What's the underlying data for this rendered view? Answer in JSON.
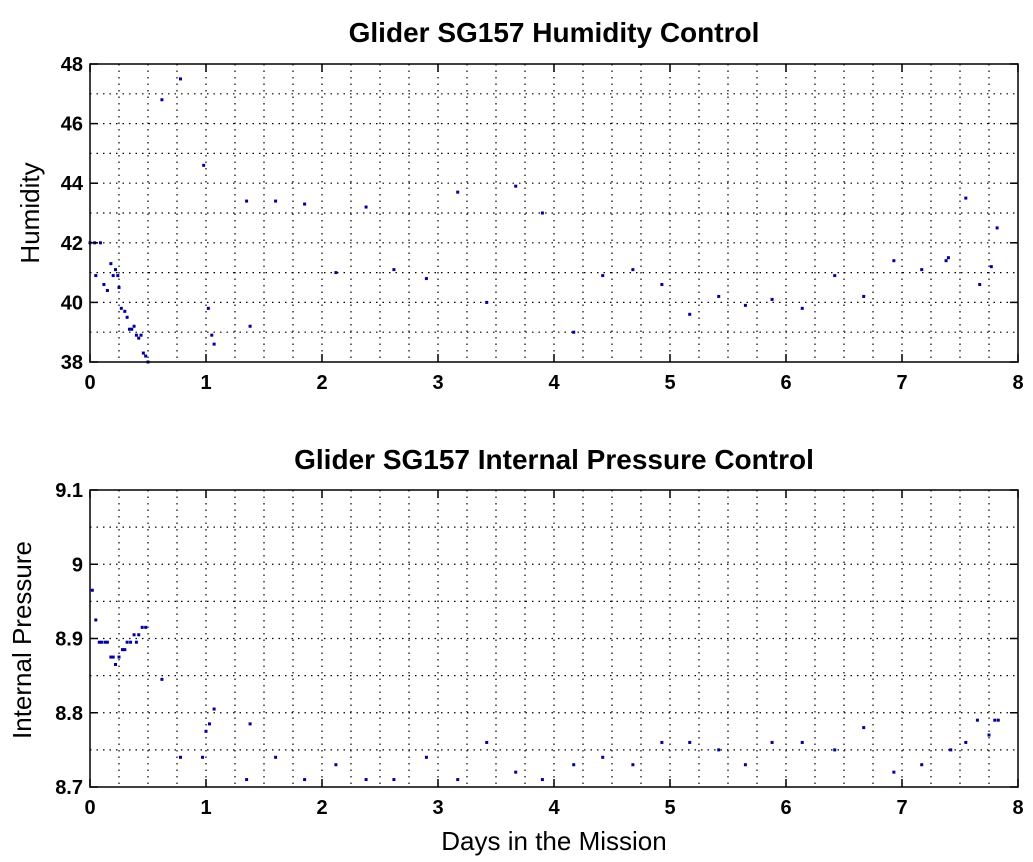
{
  "chart_data": [
    {
      "type": "scatter",
      "title": "Glider SG157 Humidity Control",
      "xlabel": "",
      "ylabel": "Humidity",
      "xlim": [
        0,
        8
      ],
      "ylim": [
        38,
        48
      ],
      "xticks": [
        0,
        1,
        2,
        3,
        4,
        5,
        6,
        7,
        8
      ],
      "yticks": [
        38,
        40,
        42,
        44,
        46,
        48
      ],
      "grid": true,
      "marker_color": "#00009b",
      "series": [
        {
          "x": [
            0.0,
            0.04,
            0.05,
            0.09,
            0.12,
            0.15,
            0.18,
            0.2,
            0.22,
            0.24,
            0.25,
            0.27,
            0.3,
            0.32,
            0.34,
            0.36,
            0.38,
            0.4,
            0.42,
            0.44,
            0.46,
            0.48,
            0.5,
            0.62,
            0.78,
            0.98,
            1.02,
            1.05,
            1.07,
            1.35,
            1.38,
            1.6,
            1.85,
            2.12,
            2.38,
            2.62,
            2.9,
            3.17,
            3.42,
            3.67,
            3.9,
            4.17,
            4.42,
            4.68,
            4.93,
            5.17,
            5.42,
            5.65,
            5.88,
            6.14,
            6.42,
            6.67,
            6.93,
            7.17,
            7.38,
            7.4,
            7.55,
            7.67,
            7.77,
            7.82
          ],
          "y": [
            42.0,
            42.0,
            40.9,
            42.0,
            40.6,
            40.4,
            41.3,
            40.9,
            41.1,
            40.9,
            40.5,
            39.8,
            39.7,
            39.5,
            39.1,
            39.1,
            39.2,
            38.9,
            38.8,
            38.9,
            38.3,
            38.2,
            38.0,
            46.8,
            47.5,
            44.6,
            39.8,
            38.9,
            38.6,
            43.4,
            39.2,
            43.4,
            43.3,
            41.0,
            43.2,
            41.1,
            40.8,
            43.7,
            40.0,
            43.9,
            43.0,
            39.0,
            40.9,
            41.1,
            40.6,
            39.6,
            40.2,
            39.9,
            40.1,
            39.8,
            40.9,
            40.2,
            41.4,
            41.1,
            41.4,
            41.5,
            43.5,
            40.6,
            41.2,
            42.5
          ]
        }
      ]
    },
    {
      "type": "scatter",
      "title": "Glider SG157 Internal Pressure Control",
      "xlabel": "Days in the Mission",
      "ylabel": "Internal Pressure",
      "xlim": [
        0,
        8
      ],
      "ylim": [
        8.7,
        9.1
      ],
      "xticks": [
        0,
        1,
        2,
        3,
        4,
        5,
        6,
        7,
        8
      ],
      "yticks": [
        8.7,
        8.8,
        8.9,
        9.0,
        9.1
      ],
      "ytick_labels": [
        "8.7",
        "8.8",
        "8.9",
        "9",
        "9.1"
      ],
      "grid": true,
      "marker_color": "#00009b",
      "series": [
        {
          "x": [
            0.02,
            0.05,
            0.08,
            0.1,
            0.13,
            0.15,
            0.18,
            0.2,
            0.22,
            0.25,
            0.28,
            0.3,
            0.32,
            0.35,
            0.38,
            0.4,
            0.42,
            0.45,
            0.48,
            0.62,
            0.78,
            0.97,
            1.0,
            1.03,
            1.07,
            1.35,
            1.38,
            1.6,
            1.85,
            2.12,
            2.38,
            2.62,
            2.9,
            3.17,
            3.42,
            3.67,
            3.9,
            4.17,
            4.42,
            4.68,
            4.93,
            5.17,
            5.42,
            5.65,
            5.88,
            6.14,
            6.42,
            6.67,
            6.93,
            7.17,
            7.42,
            7.55,
            7.65,
            7.75,
            7.8,
            7.83
          ],
          "y": [
            8.965,
            8.925,
            8.895,
            8.895,
            8.895,
            8.895,
            8.875,
            8.875,
            8.865,
            8.875,
            8.885,
            8.885,
            8.895,
            8.895,
            8.905,
            8.895,
            8.905,
            8.915,
            8.915,
            8.845,
            8.74,
            8.74,
            8.775,
            8.785,
            8.805,
            8.71,
            8.785,
            8.74,
            8.71,
            8.73,
            8.71,
            8.71,
            8.74,
            8.71,
            8.76,
            8.72,
            8.71,
            8.73,
            8.74,
            8.73,
            8.76,
            8.76,
            8.75,
            8.73,
            8.76,
            8.76,
            8.75,
            8.78,
            8.72,
            8.73,
            8.75,
            8.76,
            8.79,
            8.77,
            8.79,
            8.79
          ]
        }
      ]
    }
  ]
}
